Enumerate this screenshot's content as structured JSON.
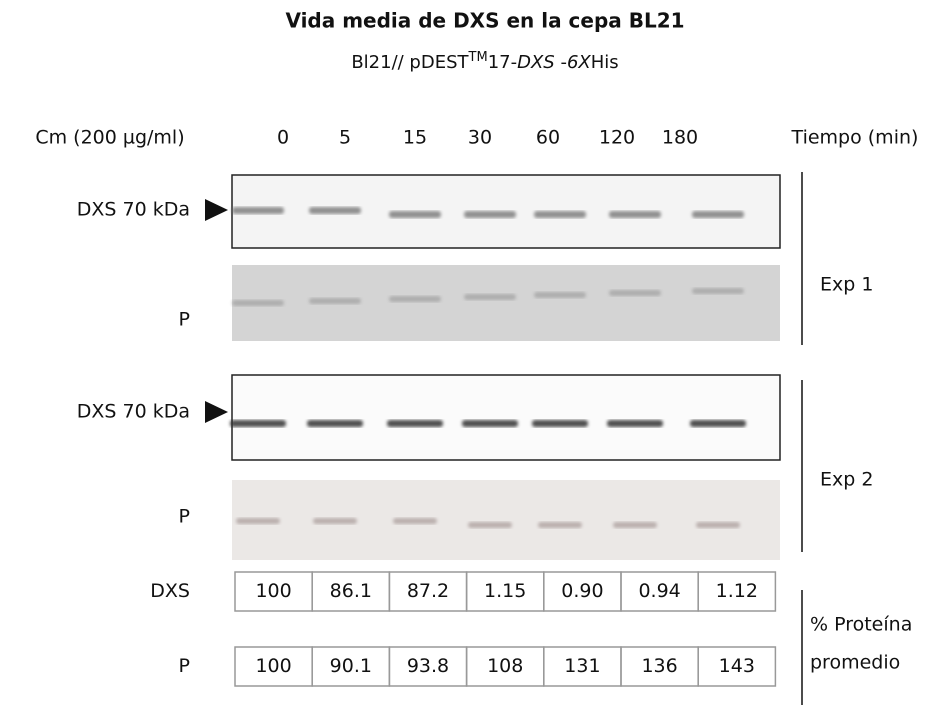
{
  "title": "Vida media de DXS en la cepa BL21",
  "subtitle": {
    "part1": "Bl21// pDEST",
    "superscript": "TM",
    "part2": "17-",
    "gene": "DXS",
    "part3": " -",
    "tag": "6X",
    "part4": "His"
  },
  "header": {
    "condition": "Cm (200 µg/ml)",
    "times": [
      "0",
      "5",
      "15",
      "30",
      "60",
      "120",
      "180"
    ],
    "time_label": "Tiempo (min)"
  },
  "experiments": [
    {
      "label": "Exp 1",
      "band_label": "DXS  70 kDa",
      "loading_label": "P"
    },
    {
      "label": "Exp 2",
      "band_label": "DXS  70 kDa",
      "loading_label": "P"
    }
  ],
  "table": {
    "rows": [
      {
        "label": "DXS",
        "values": [
          "100",
          "86.1",
          "87.2",
          "1.15",
          "0.90",
          "0.94",
          "1.12"
        ]
      },
      {
        "label": "P",
        "values": [
          "100",
          "90.1",
          "93.8",
          "108",
          "131",
          "136",
          "143"
        ]
      }
    ],
    "caption_line1": "% Proteína",
    "caption_line2": "promedio"
  }
}
